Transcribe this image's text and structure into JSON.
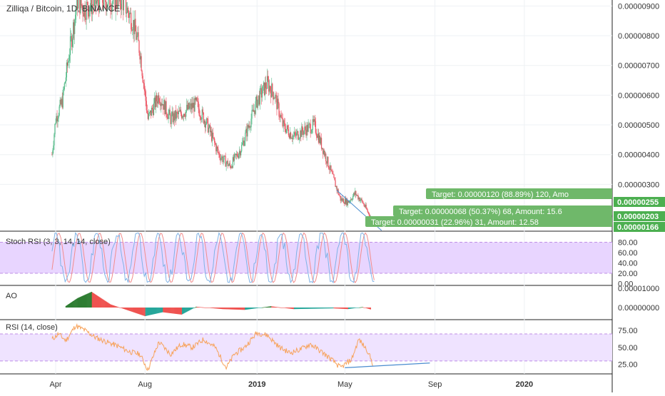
{
  "chart_data": {
    "type": "candlestick",
    "title": "Zilliqa / Bitcoin, 1D, BINANCE",
    "x_ticks": [
      "Apr",
      "Aug",
      "2019",
      "May",
      "Sep",
      "2020"
    ],
    "price_pane": {
      "y_ticks": [
        "0.00000300",
        "0.00000400",
        "0.00000500",
        "0.00000600",
        "0.00000700",
        "0.00000800",
        "0.00000900"
      ],
      "ylim": [
        1.45e-06,
        9.2e-06
      ],
      "series": [
        {
          "x": "2018-03-27",
          "close": 4e-06
        },
        {
          "x": "2018-04-01",
          "close": 5.2e-06
        },
        {
          "x": "2018-04-10",
          "close": 5.8e-06
        },
        {
          "x": "2018-04-20",
          "close": 7.5e-06
        },
        {
          "x": "2018-05-01",
          "close": 9.2e-06
        },
        {
          "x": "2018-05-10",
          "close": 8.9e-06
        },
        {
          "x": "2018-06-01",
          "close": 9.2e-06
        },
        {
          "x": "2018-07-01",
          "close": 9.2e-06
        },
        {
          "x": "2018-07-15",
          "close": 8.5e-06
        },
        {
          "x": "2018-07-25",
          "close": 7.5e-06
        },
        {
          "x": "2018-08-05",
          "close": 5.2e-06
        },
        {
          "x": "2018-08-20",
          "close": 6e-06
        },
        {
          "x": "2018-09-05",
          "close": 5.2e-06
        },
        {
          "x": "2018-09-20",
          "close": 5.4e-06
        },
        {
          "x": "2018-10-10",
          "close": 5.7e-06
        },
        {
          "x": "2018-10-25",
          "close": 5e-06
        },
        {
          "x": "2018-11-10",
          "close": 4e-06
        },
        {
          "x": "2018-11-25",
          "close": 3.6e-06
        },
        {
          "x": "2018-12-10",
          "close": 4.2e-06
        },
        {
          "x": "2019-01-01",
          "close": 5.8e-06
        },
        {
          "x": "2019-01-15",
          "close": 6.4e-06
        },
        {
          "x": "2019-01-25",
          "close": 6e-06
        },
        {
          "x": "2019-02-05",
          "close": 5e-06
        },
        {
          "x": "2019-02-20",
          "close": 4.6e-06
        },
        {
          "x": "2019-03-05",
          "close": 4.8e-06
        },
        {
          "x": "2019-03-20",
          "close": 5e-06
        },
        {
          "x": "2019-04-01",
          "close": 4.2e-06
        },
        {
          "x": "2019-04-15",
          "close": 3.2e-06
        },
        {
          "x": "2019-04-25",
          "close": 2.5e-06
        },
        {
          "x": "2019-05-05",
          "close": 2.4e-06
        },
        {
          "x": "2019-05-15",
          "close": 2.7e-06
        },
        {
          "x": "2019-05-25",
          "close": 2.4e-06
        },
        {
          "x": "2019-06-05",
          "close": 1.9e-06
        }
      ],
      "price_labels": [
        {
          "text": "0.00000255",
          "value": 2.55e-06
        },
        {
          "text": "0.00000203",
          "value": 2.03e-06
        },
        {
          "text": "0.00000166",
          "value": 1.66e-06
        }
      ],
      "targets": [
        {
          "text": "Target: 0.00000120 (88.89%) 120, Amo",
          "value": 2.55e-06
        },
        {
          "text": "Target: 0.00000068 (50.37%) 68, Amount: 15.6",
          "value": 1.93e-06
        },
        {
          "text": "Target: 0.00000031 (22.96%) 31, Amount: 12.58",
          "value": 1.53e-06
        }
      ]
    },
    "stoch_rsi_pane": {
      "label": "Stoch RSI (3, 3, 14, 14, close)",
      "y_ticks": [
        "0.00",
        "20.00",
        "40.00",
        "60.00",
        "80.00"
      ],
      "ylim": [
        -2,
        100
      ],
      "bands": [
        20,
        80
      ]
    },
    "ao_pane": {
      "label": "AO",
      "y_ticks": [
        "0.00000000",
        "0.00001000"
      ],
      "series": [
        {
          "x": "2018-04-15",
          "value": 0.1
        },
        {
          "x": "2018-05-01",
          "value": 0.6
        },
        {
          "x": "2018-05-20",
          "value": 1.0
        },
        {
          "x": "2018-06-15",
          "value": 0.2
        },
        {
          "x": "2018-07-10",
          "value": -0.2
        },
        {
          "x": "2018-08-01",
          "value": -0.55
        },
        {
          "x": "2018-08-25",
          "value": -0.3
        },
        {
          "x": "2018-09-20",
          "value": -0.45
        },
        {
          "x": "2018-10-10",
          "value": 0.05
        },
        {
          "x": "2018-11-15",
          "value": -0.1
        },
        {
          "x": "2018-12-15",
          "value": -0.15
        },
        {
          "x": "2019-01-20",
          "value": 0.08
        },
        {
          "x": "2019-02-20",
          "value": -0.1
        },
        {
          "x": "2019-04-15",
          "value": -0.05
        },
        {
          "x": "2019-05-05",
          "value": -0.1
        },
        {
          "x": "2019-05-25",
          "value": 0.03
        },
        {
          "x": "2019-06-05",
          "value": -0.12
        }
      ]
    },
    "rsi_pane": {
      "label": "RSI (14, close)",
      "y_ticks": [
        "25.00",
        "50.00",
        "75.00"
      ],
      "ylim": [
        12,
        90
      ],
      "bands": [
        30,
        70
      ],
      "series": [
        {
          "x": "2018-03-27",
          "value": 62
        },
        {
          "x": "2018-04-05",
          "value": 70
        },
        {
          "x": "2018-04-15",
          "value": 60
        },
        {
          "x": "2018-04-28",
          "value": 82
        },
        {
          "x": "2018-05-10",
          "value": 76
        },
        {
          "x": "2018-05-25",
          "value": 65
        },
        {
          "x": "2018-06-10",
          "value": 58
        },
        {
          "x": "2018-06-25",
          "value": 52
        },
        {
          "x": "2018-07-10",
          "value": 44
        },
        {
          "x": "2018-07-25",
          "value": 40
        },
        {
          "x": "2018-08-05",
          "value": 17
        },
        {
          "x": "2018-08-20",
          "value": 58
        },
        {
          "x": "2018-09-05",
          "value": 40
        },
        {
          "x": "2018-09-20",
          "value": 55
        },
        {
          "x": "2018-10-05",
          "value": 50
        },
        {
          "x": "2018-10-20",
          "value": 62
        },
        {
          "x": "2018-11-05",
          "value": 50
        },
        {
          "x": "2018-11-20",
          "value": 20
        },
        {
          "x": "2018-12-01",
          "value": 40
        },
        {
          "x": "2018-12-15",
          "value": 50
        },
        {
          "x": "2019-01-01",
          "value": 72
        },
        {
          "x": "2019-01-15",
          "value": 68
        },
        {
          "x": "2019-02-01",
          "value": 50
        },
        {
          "x": "2019-02-15",
          "value": 42
        },
        {
          "x": "2019-03-01",
          "value": 47
        },
        {
          "x": "2019-03-15",
          "value": 55
        },
        {
          "x": "2019-04-01",
          "value": 42
        },
        {
          "x": "2019-04-15",
          "value": 30
        },
        {
          "x": "2019-04-25",
          "value": 20
        },
        {
          "x": "2019-05-10",
          "value": 32
        },
        {
          "x": "2019-05-20",
          "value": 62
        },
        {
          "x": "2019-06-01",
          "value": 45
        },
        {
          "x": "2019-06-08",
          "value": 26
        }
      ],
      "trendline": [
        {
          "x": "2019-05-01",
          "value": 20
        },
        {
          "x": "2019-08-25",
          "value": 27
        }
      ]
    }
  },
  "colors": {
    "up": "#53b987",
    "down": "#eb4d5c",
    "rsi_line": "#f7a35c",
    "stoch_k": "#7fb3e6",
    "stoch_d": "#f28c8c",
    "band_fill": "#e8d5ff",
    "band_line": "#bf8fe6",
    "target_box": "#6fb86a",
    "price_label": "#4caf50",
    "trend_line": "#4a8ccf",
    "grid": "#eef1f4",
    "axis_text": "#333333"
  }
}
